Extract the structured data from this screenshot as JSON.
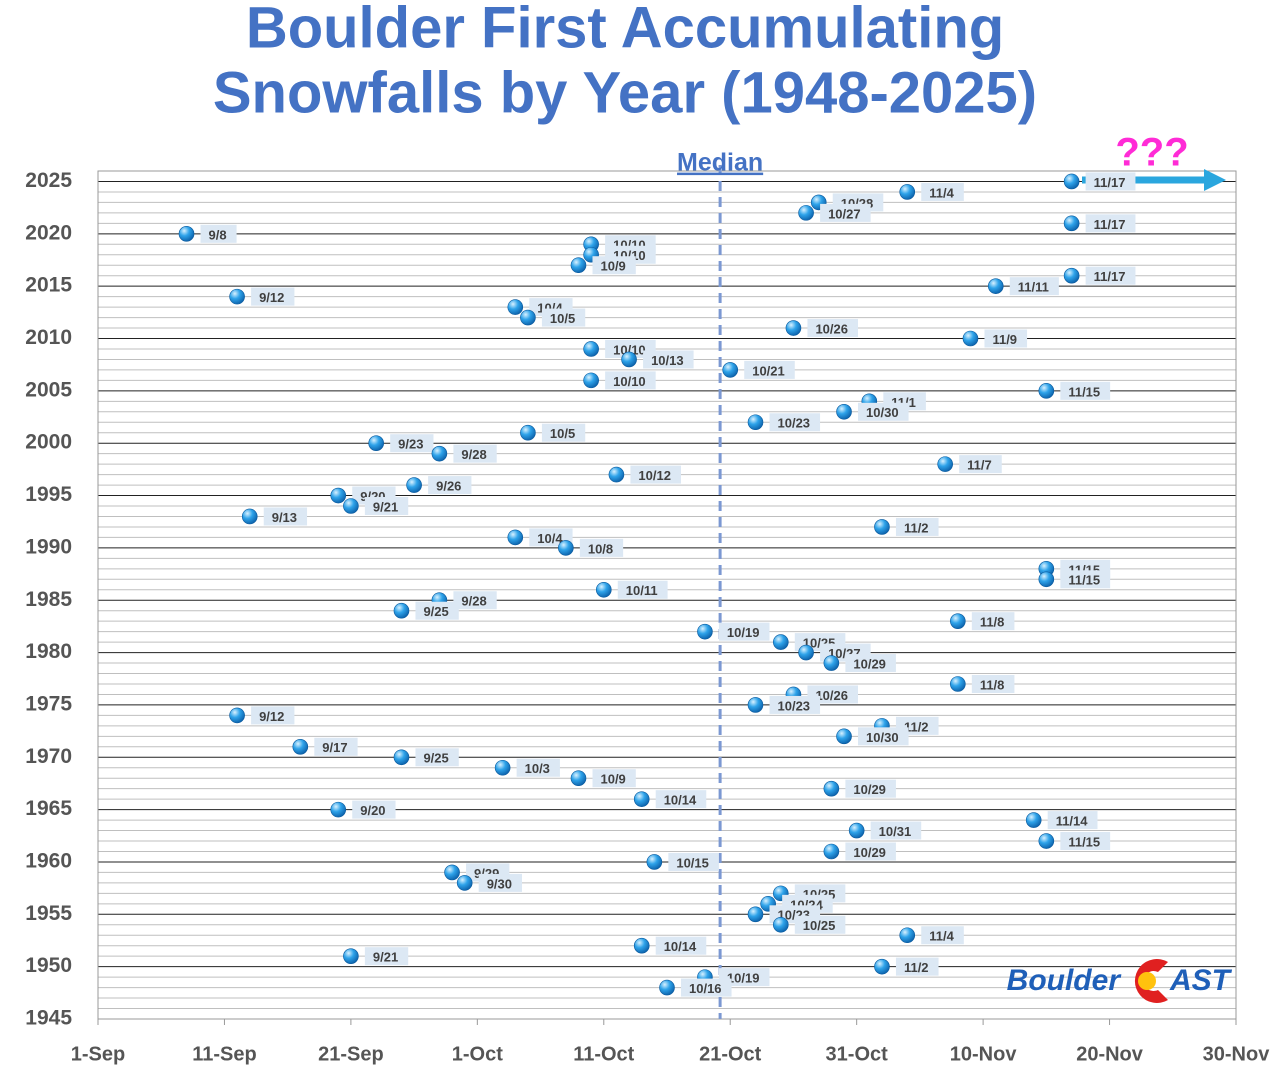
{
  "chart_data": {
    "type": "scatter",
    "title_lines": [
      "Boulder First Accumulating",
      "Snowfalls by Year (1948-2025)"
    ],
    "xlim": [
      0,
      90
    ],
    "xticks": [
      {
        "value": 0,
        "label": "1-Sep"
      },
      {
        "value": 10,
        "label": "11-Sep"
      },
      {
        "value": 20,
        "label": "21-Sep"
      },
      {
        "value": 30,
        "label": "1-Oct"
      },
      {
        "value": 40,
        "label": "11-Oct"
      },
      {
        "value": 50,
        "label": "21-Oct"
      },
      {
        "value": 60,
        "label": "31-Oct"
      },
      {
        "value": 70,
        "label": "10-Nov"
      },
      {
        "value": 80,
        "label": "20-Nov"
      },
      {
        "value": 90,
        "label": "30-Nov"
      }
    ],
    "ylim": [
      1945,
      2026
    ],
    "yticks": [
      1945,
      1950,
      1955,
      1960,
      1965,
      1970,
      1975,
      1980,
      1985,
      1990,
      1995,
      2000,
      2005,
      2010,
      2015,
      2020,
      2025
    ],
    "minor_yticks": [
      1946,
      1947,
      1948,
      1949,
      1951,
      1952,
      1953,
      1954,
      1956,
      1957,
      1958,
      1959,
      1961,
      1962,
      1963,
      1964,
      1966,
      1967,
      1968,
      1969,
      1971,
      1972,
      1973,
      1974,
      1976,
      1977,
      1978,
      1979,
      1981,
      1982,
      1983,
      1984,
      1986,
      1987,
      1988,
      1989,
      1991,
      1992,
      1993,
      1994,
      1996,
      1997,
      1998,
      1999,
      2001,
      2002,
      2003,
      2004,
      2006,
      2007,
      2008,
      2009,
      2011,
      2012,
      2013,
      2014,
      2016,
      2017,
      2018,
      2019,
      2021,
      2022,
      2023,
      2024,
      2026
    ],
    "grid": true,
    "median": {
      "label": "Median",
      "value": 49.2
    },
    "annotation": "???",
    "logo": {
      "left": "Boulder",
      "right": "AST"
    },
    "color": "#1e90d8",
    "values": [
      2025,
      2024,
      2023,
      2022,
      2021,
      2020,
      2019,
      2018,
      2017,
      2016,
      2015,
      2014,
      2013,
      2012,
      2011,
      2010,
      2009,
      2008,
      2007,
      2006,
      2005,
      2004,
      2003,
      2002,
      2001,
      2000,
      1999,
      1998,
      1997,
      1996,
      1995,
      1994,
      1993,
      1992,
      1991,
      1990,
      1988,
      1987,
      1986,
      1985,
      1984,
      1983,
      1982,
      1981,
      1980,
      1979,
      1977,
      1976,
      1975,
      1974,
      1973,
      1972,
      1971,
      1970,
      1969,
      1968,
      1967,
      1966,
      1965,
      1964,
      1963,
      1962,
      1961,
      1960,
      1959,
      1958,
      1957,
      1956,
      1955,
      1954,
      1953,
      1952,
      1951,
      1950,
      1949,
      1948
    ],
    "x": [
      77,
      64,
      57,
      56,
      77,
      7,
      39,
      39,
      38,
      77,
      71,
      11,
      33,
      34,
      55,
      69,
      39,
      42,
      50,
      39,
      75,
      61,
      59,
      52,
      34,
      22,
      27,
      67,
      41,
      25,
      19,
      20,
      12,
      62,
      33,
      37,
      75,
      75,
      40,
      27,
      24,
      68,
      48,
      54,
      56,
      58,
      68,
      55,
      52,
      11,
      62,
      59,
      16,
      24,
      32,
      38,
      58,
      43,
      19,
      74,
      60,
      75,
      58,
      44,
      28,
      29,
      54,
      53,
      52,
      54,
      64,
      43,
      20,
      62,
      48,
      45
    ],
    "value_labels": [
      "11/17",
      "11/4",
      "10/28",
      "10/27",
      "11/17",
      "9/8",
      "10/10",
      "10/10",
      "10/9",
      "11/17",
      "11/11",
      "9/12",
      "10/4",
      "10/5",
      "10/26",
      "11/9",
      "10/10",
      "10/13",
      "10/21",
      "10/10",
      "11/15",
      "11/1",
      "10/30",
      "10/23",
      "10/5",
      "9/23",
      "9/28",
      "11/7",
      "10/12",
      "9/26",
      "9/20",
      "9/21",
      "9/13",
      "11/2",
      "10/4",
      "10/8",
      "11/15",
      "11/15",
      "10/11",
      "9/28",
      "9/25",
      "11/8",
      "10/19",
      "10/25",
      "10/27",
      "10/29",
      "11/8",
      "10/26",
      "10/23",
      "9/12",
      "11/2",
      "10/30",
      "9/17",
      "9/25",
      "10/3",
      "10/9",
      "10/29",
      "10/14",
      "9/20",
      "11/14",
      "10/31",
      "11/15",
      "10/29",
      "10/15",
      "9/29",
      "9/30",
      "10/25",
      "10/24",
      "10/23",
      "10/25",
      "11/4",
      "10/14",
      "9/21",
      "11/2",
      "10/19",
      "10/16"
    ]
  }
}
